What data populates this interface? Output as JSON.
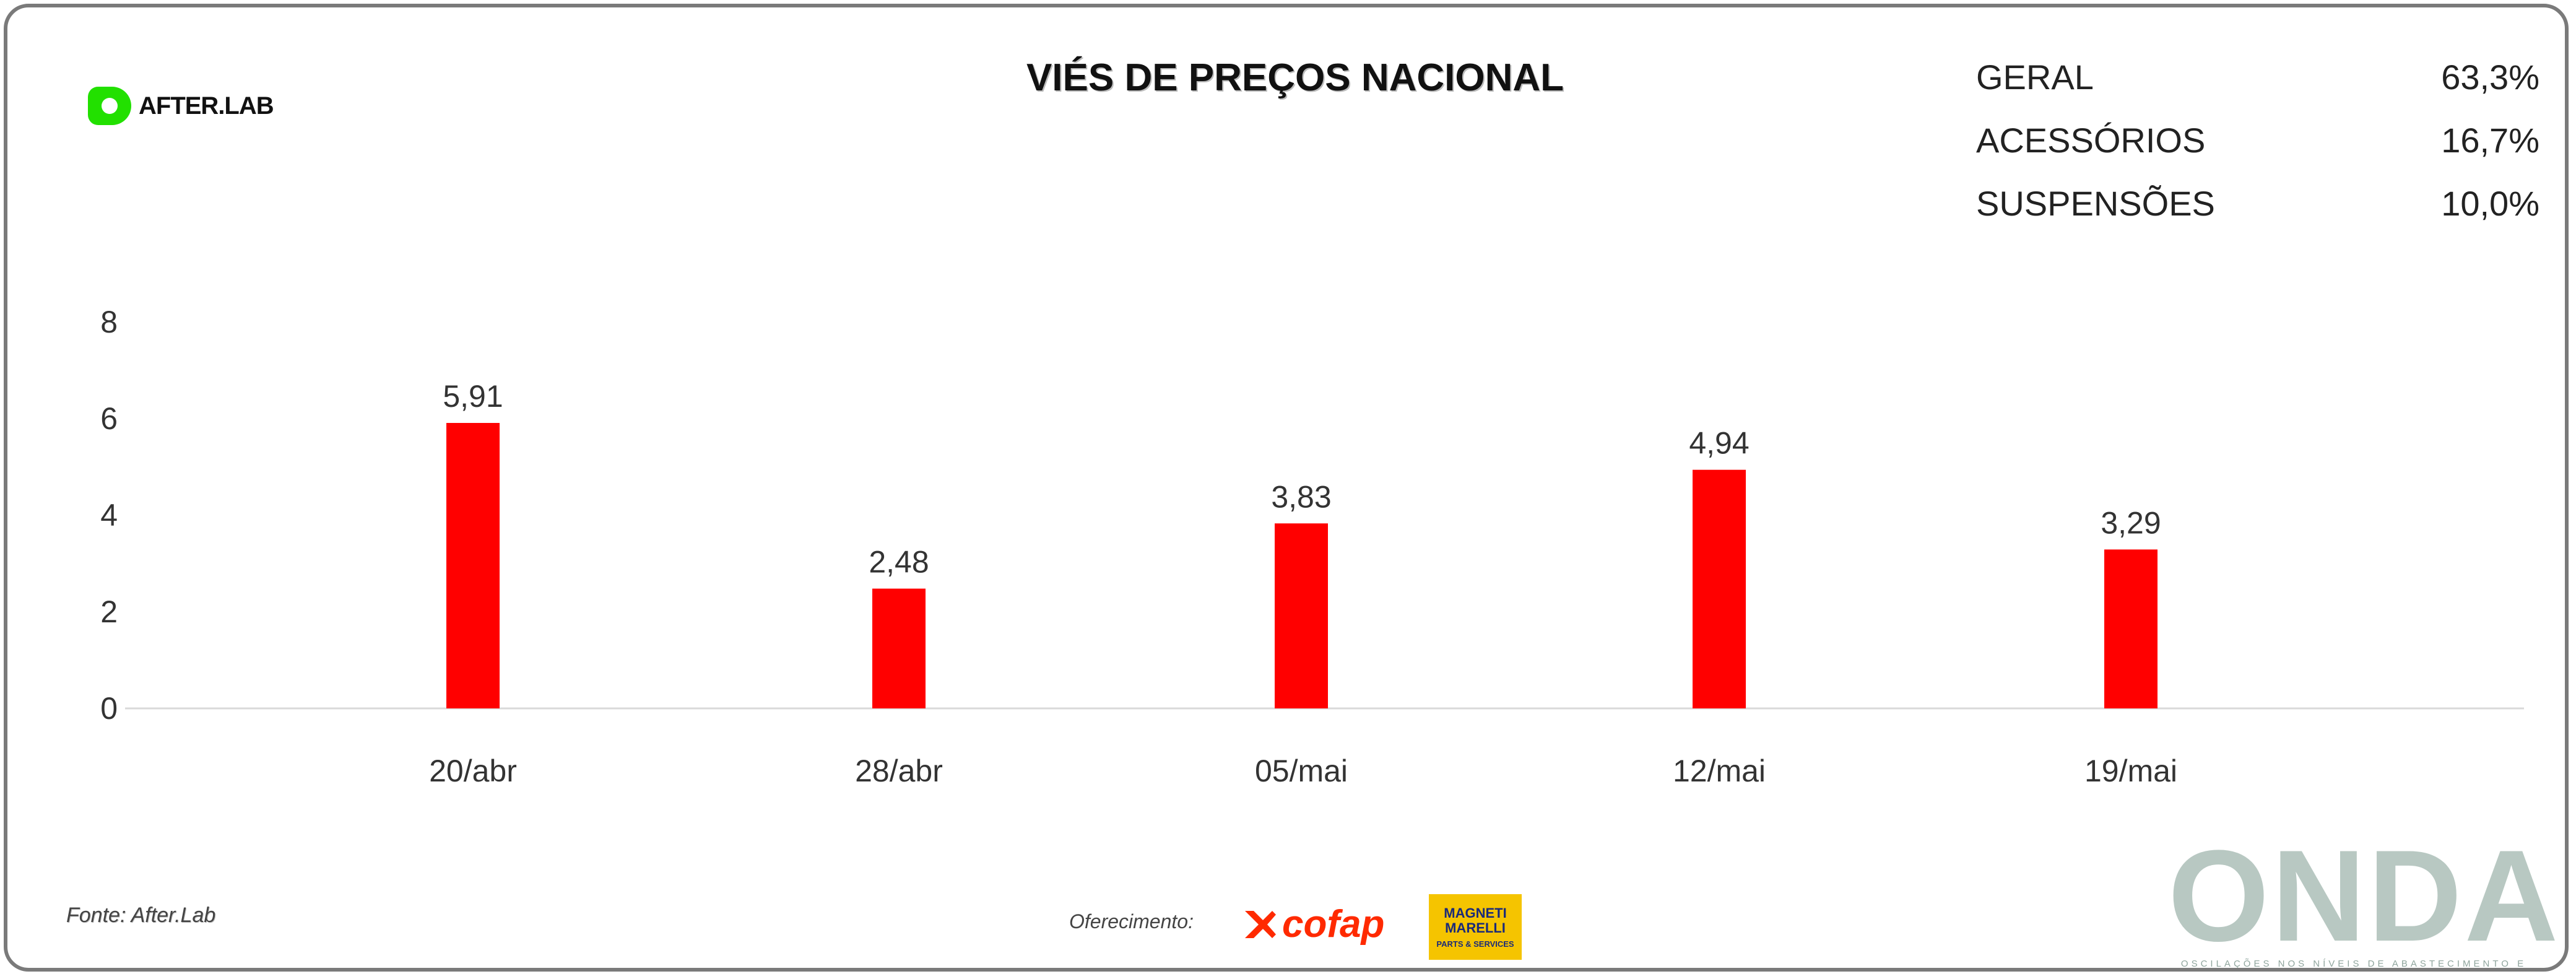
{
  "header": {
    "logo_text": "AFTER.LAB",
    "title": "VIÉS DE PREÇOS NACIONAL"
  },
  "summary": [
    {
      "label": "GERAL",
      "value": "63,3%"
    },
    {
      "label": "ACESSÓRIOS",
      "value": "16,7%"
    },
    {
      "label": "SUSPENSÕES",
      "value": "10,0%"
    }
  ],
  "chart_data": {
    "type": "bar",
    "title": "VIÉS DE PREÇOS NACIONAL",
    "categories": [
      "20/abr",
      "28/abr",
      "05/mai",
      "12/mai",
      "19/mai"
    ],
    "values": [
      5.91,
      2.48,
      3.83,
      4.94,
      3.29
    ],
    "value_labels": [
      "5,91",
      "2,48",
      "3,83",
      "4,94",
      "3,29"
    ],
    "yticks": [
      0,
      2,
      4,
      6,
      8
    ],
    "ylim": [
      0,
      8
    ],
    "xlabel": "",
    "ylabel": "",
    "bar_color": "#ff0000",
    "grid": false,
    "legend": "none"
  },
  "footer": {
    "source": "Fonte: After.Lab",
    "sponsor_label": "Oferecimento:",
    "sponsor_1": "cofap",
    "sponsor_2_name": "MAGNETI MARELLI",
    "sponsor_2_sub": "PARTS & SERVICES",
    "brand": "ONDA",
    "brand_tagline": "OSCILAÇÕES NOS NÍVEIS DE ABASTECIMENTO E PREÇOS"
  }
}
